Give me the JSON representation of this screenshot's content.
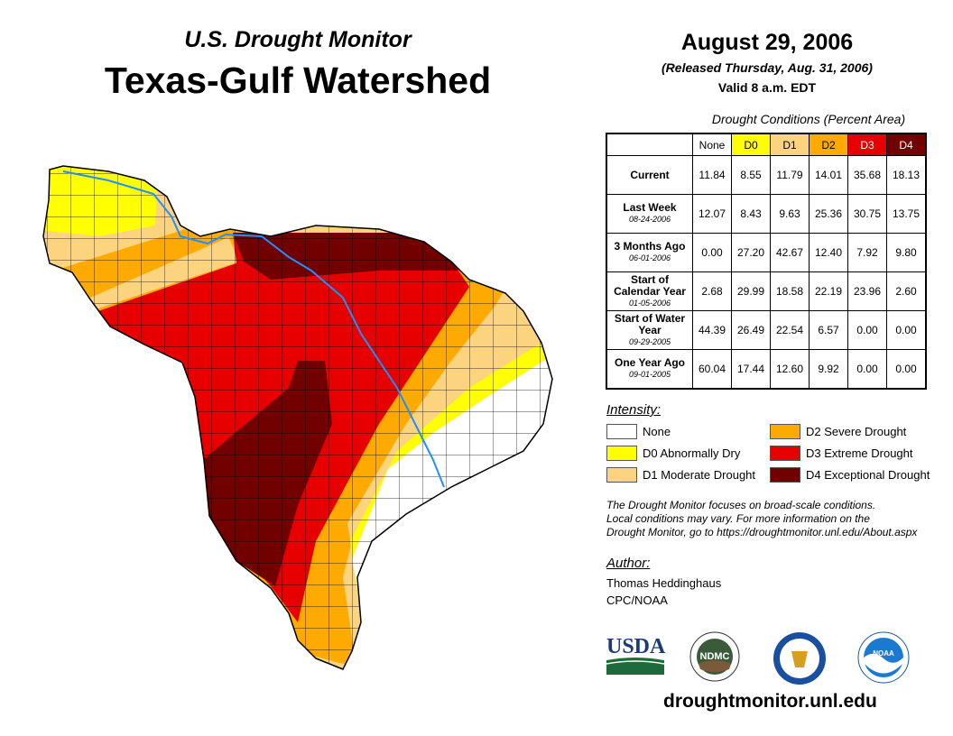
{
  "header": {
    "subtitle": "U.S. Drought Monitor",
    "title": "Texas-Gulf Watershed",
    "date": "August 29, 2006",
    "released": "(Released Thursday, Aug. 31, 2006)",
    "valid": "Valid 8 a.m. EDT"
  },
  "table": {
    "caption": "Drought Conditions (Percent Area)",
    "columns": [
      {
        "label": "None",
        "color": "#ffffff",
        "text": "#000000"
      },
      {
        "label": "D0",
        "color": "#ffff00",
        "text": "#000000"
      },
      {
        "label": "D1",
        "color": "#fcd37f",
        "text": "#000000"
      },
      {
        "label": "D2",
        "color": "#ffaa00",
        "text": "#000000"
      },
      {
        "label": "D3",
        "color": "#e60000",
        "text": "#ffffff"
      },
      {
        "label": "D4",
        "color": "#730000",
        "text": "#ffffff"
      }
    ],
    "rows": [
      {
        "label": "Current",
        "date": "",
        "values": [
          "11.84",
          "8.55",
          "11.79",
          "14.01",
          "35.68",
          "18.13"
        ]
      },
      {
        "label": "Last Week",
        "date": "08-24-2006",
        "values": [
          "12.07",
          "8.43",
          "9.63",
          "25.36",
          "30.75",
          "13.75"
        ]
      },
      {
        "label": "3 Months Ago",
        "date": "06-01-2006",
        "values": [
          "0.00",
          "27.20",
          "42.67",
          "12.40",
          "7.92",
          "9.80"
        ]
      },
      {
        "label": "Start of Calendar Year",
        "date": "01-05-2006",
        "values": [
          "2.68",
          "29.99",
          "18.58",
          "22.19",
          "23.96",
          "2.60"
        ]
      },
      {
        "label": "Start of Water Year",
        "date": "09-29-2005",
        "values": [
          "44.39",
          "26.49",
          "22.54",
          "6.57",
          "0.00",
          "0.00"
        ]
      },
      {
        "label": "One Year Ago",
        "date": "09-01-2005",
        "values": [
          "60.04",
          "17.44",
          "12.60",
          "9.92",
          "0.00",
          "0.00"
        ]
      }
    ]
  },
  "legend": {
    "title": "Intensity:",
    "items": [
      {
        "label": "None",
        "color": "#ffffff"
      },
      {
        "label": "D0 Abnormally Dry",
        "color": "#ffff00"
      },
      {
        "label": "D1 Moderate Drought",
        "color": "#fcd37f"
      },
      {
        "label": "D2 Severe Drought",
        "color": "#ffaa00"
      },
      {
        "label": "D3 Extreme Drought",
        "color": "#e60000"
      },
      {
        "label": "D4 Exceptional Drought",
        "color": "#730000"
      }
    ]
  },
  "note": [
    "The Drought Monitor focuses on broad-scale conditions.",
    "Local conditions may vary. For more information on the",
    "Drought Monitor, go to https://droughtmonitor.unl.edu/About.aspx"
  ],
  "author": {
    "label": "Author:",
    "name": "Thomas Heddinghaus",
    "org": "CPC/NOAA"
  },
  "logos": {
    "usda": "USDA",
    "ndmc": "NDMC",
    "noaa": "NOAA"
  },
  "footer_url": "droughtmonitor.unl.edu"
}
